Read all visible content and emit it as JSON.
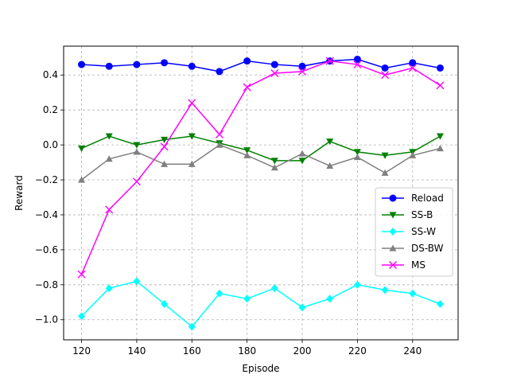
{
  "chart_data": {
    "type": "line",
    "title": "",
    "xlabel": "Episode",
    "ylabel": "Reward",
    "x": [
      120,
      130,
      140,
      150,
      160,
      170,
      180,
      190,
      200,
      210,
      220,
      230,
      240,
      250
    ],
    "xlim": [
      113.5,
      256.5
    ],
    "ylim": [
      -1.115,
      0.565
    ],
    "xticks": [
      120,
      140,
      160,
      180,
      200,
      220,
      240
    ],
    "yticks": [
      -1.0,
      -0.8,
      -0.6,
      -0.4,
      -0.2,
      0.0,
      0.2,
      0.4
    ],
    "ytick_labels": [
      "−1.0",
      "−0.8",
      "−0.6",
      "−0.4",
      "−0.2",
      "0.0",
      "0.2",
      "0.4"
    ],
    "grid": true,
    "grid_style": "dashed",
    "legend_position": "center-right",
    "series": [
      {
        "name": "Reload",
        "color": "#0000ff",
        "marker": "circle",
        "values": [
          0.46,
          0.45,
          0.46,
          0.47,
          0.45,
          0.42,
          0.48,
          0.46,
          0.45,
          0.48,
          0.49,
          0.44,
          0.47,
          0.44
        ]
      },
      {
        "name": "SS-B",
        "color": "#008000",
        "marker": "triangle-down",
        "values": [
          -0.02,
          0.05,
          0.0,
          0.03,
          0.05,
          0.01,
          -0.03,
          -0.09,
          -0.09,
          0.02,
          -0.04,
          -0.06,
          -0.04,
          0.05
        ]
      },
      {
        "name": "SS-W",
        "color": "#00ffff",
        "marker": "diamond",
        "values": [
          -0.98,
          -0.82,
          -0.78,
          -0.91,
          -1.04,
          -0.85,
          -0.88,
          -0.82,
          -0.93,
          -0.88,
          -0.8,
          -0.83,
          -0.85,
          -0.91
        ]
      },
      {
        "name": "DS-BW",
        "color": "#808080",
        "marker": "triangle-up",
        "values": [
          -0.2,
          -0.08,
          -0.04,
          -0.11,
          -0.11,
          0.0,
          -0.06,
          -0.13,
          -0.05,
          -0.12,
          -0.07,
          -0.16,
          -0.06,
          -0.02
        ]
      },
      {
        "name": "MS",
        "color": "#ff00ff",
        "marker": "x",
        "values": [
          -0.74,
          -0.37,
          -0.21,
          -0.01,
          0.24,
          0.06,
          0.33,
          0.41,
          0.42,
          0.48,
          0.46,
          0.4,
          0.44,
          0.34
        ]
      }
    ]
  }
}
